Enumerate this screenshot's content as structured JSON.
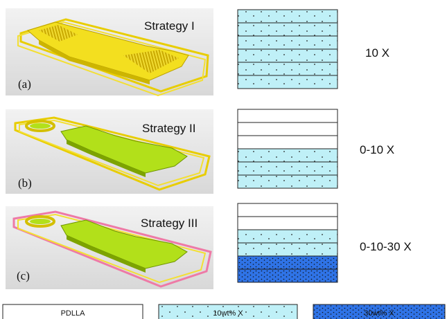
{
  "rows": [
    {
      "label": "(a)",
      "strategy": "Strategy I",
      "composition": "10 X",
      "layers": [
        "light",
        "light",
        "light",
        "light",
        "light",
        "light"
      ]
    },
    {
      "label": "(b)",
      "strategy": "Strategy II",
      "composition": "0-10 X",
      "layers": [
        "white",
        "white",
        "white",
        "light",
        "light",
        "light"
      ]
    },
    {
      "label": "(c)",
      "strategy": "Strategy III",
      "composition": "0-10-30 X",
      "layers": [
        "white",
        "white",
        "light",
        "light",
        "dark",
        "dark"
      ]
    }
  ],
  "legend": {
    "pdlla": "PDLLA",
    "light": "10wt% X",
    "dark": "30wt% X"
  },
  "colors": {
    "light": "#bff0f7",
    "dark": "#2f73e6",
    "yellow": "#f5e21c",
    "green": "#b2e01a",
    "pink": "#ee7aa6"
  }
}
